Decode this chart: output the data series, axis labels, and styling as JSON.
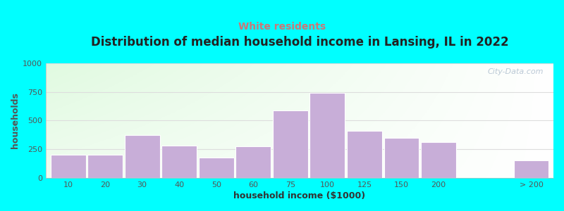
{
  "title": "Distribution of median household income in Lansing, IL in 2022",
  "subtitle": "White residents",
  "xlabel": "household income ($1000)",
  "ylabel": "households",
  "background_color": "#00FFFF",
  "bar_color": "#c8aed8",
  "bar_edge_color": "#ffffff",
  "categories": [
    "10",
    "20",
    "30",
    "40",
    "50",
    "60",
    "75",
    "100",
    "125",
    "150",
    "200",
    "> 200"
  ],
  "bar_heights": [
    200,
    200,
    375,
    280,
    175,
    275,
    590,
    745,
    410,
    350,
    310,
    155
  ],
  "ylim": [
    0,
    1000
  ],
  "yticks": [
    0,
    250,
    500,
    750,
    1000
  ],
  "title_fontsize": 12,
  "subtitle_fontsize": 10,
  "subtitle_color": "#cc7777",
  "watermark_text": "City-Data.com",
  "title_color": "#222222",
  "ylabel_color": "#555555",
  "xlabel_color": "#333333",
  "grid_color": "#dddddd",
  "tick_color": "#555555"
}
